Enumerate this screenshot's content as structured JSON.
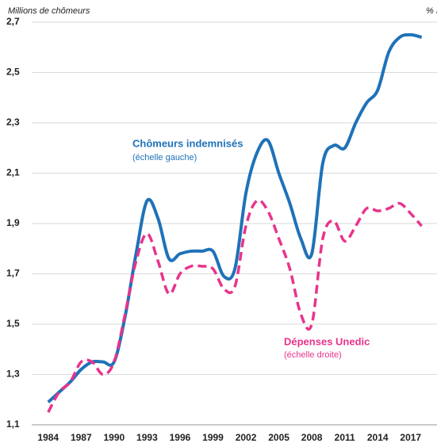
{
  "chart_data": {
    "type": "line",
    "y_axis_label": "Millions de chômeurs",
    "y2_axis_label": "% P",
    "x": [
      1984,
      1985,
      1986,
      1987,
      1988,
      1989,
      1990,
      1991,
      1992,
      1993,
      1994,
      1995,
      1996,
      1997,
      1998,
      1999,
      2000,
      2001,
      2002,
      2003,
      2004,
      2005,
      2006,
      2007,
      2008,
      2009,
      2010,
      2011,
      2012,
      2013,
      2014,
      2015,
      2016,
      2017,
      2018
    ],
    "series": [
      {
        "name": "Chômeurs indemnisés",
        "note": "(échelle gauche)",
        "color": "#1f72b8",
        "axis": "y",
        "values": [
          1.19,
          1.23,
          1.27,
          1.32,
          1.35,
          1.35,
          1.35,
          1.53,
          1.78,
          1.99,
          1.92,
          1.76,
          1.78,
          1.79,
          1.79,
          1.79,
          1.69,
          1.72,
          2.02,
          2.18,
          2.23,
          2.1,
          1.98,
          1.84,
          1.78,
          2.14,
          2.21,
          2.2,
          2.3,
          2.38,
          2.43,
          2.58,
          2.64,
          2.65,
          2.64
        ]
      },
      {
        "name": "Dépenses Unedic",
        "note": "(échelle droite)",
        "color": "#e8348c",
        "axis": "y2",
        "dashed": true,
        "values": [
          1.15,
          1.23,
          1.27,
          1.35,
          1.35,
          1.3,
          1.35,
          1.54,
          1.75,
          1.86,
          1.75,
          1.62,
          1.7,
          1.73,
          1.73,
          1.72,
          1.64,
          1.65,
          1.89,
          1.99,
          1.95,
          1.84,
          1.72,
          1.54,
          1.5,
          1.84,
          1.91,
          1.83,
          1.89,
          1.96,
          1.95,
          1.96,
          1.98,
          1.94,
          1.89
        ]
      }
    ],
    "xlim": [
      1982.5,
      2019.4
    ],
    "xticks": [
      1984,
      1987,
      1990,
      1993,
      1996,
      1999,
      2002,
      2005,
      2008,
      2011,
      2014,
      2017
    ],
    "ylim": [
      1.1,
      2.7
    ],
    "yticks": [
      {
        "value": 1.1,
        "label": "1,1"
      },
      {
        "value": 1.3,
        "label": "1,3"
      },
      {
        "value": 1.5,
        "label": "1,5"
      },
      {
        "value": 1.7,
        "label": "1,7"
      },
      {
        "value": 1.9,
        "label": "1,9"
      },
      {
        "value": 2.1,
        "label": "2,1"
      },
      {
        "value": 2.3,
        "label": "2,3"
      },
      {
        "value": 2.5,
        "label": "2,5"
      },
      {
        "value": 2.7,
        "label": "2,7"
      }
    ],
    "y2lim": [
      1.1,
      2.7
    ],
    "grid": true
  }
}
